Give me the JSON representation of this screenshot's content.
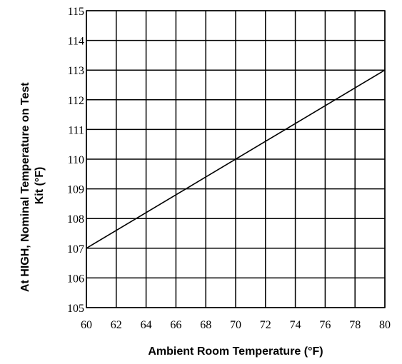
{
  "chart_data": {
    "type": "line",
    "title": "",
    "xlabel": "Ambient Room Temperature (°F)",
    "ylabel_lines": [
      "At HIGH, Nominal Temperature on Test",
      "Kit (°F)"
    ],
    "xlim": [
      60,
      80
    ],
    "ylim": [
      105,
      115
    ],
    "x_ticks": [
      "60",
      "62",
      "64",
      "66",
      "68",
      "70",
      "72",
      "74",
      "76",
      "78",
      "80"
    ],
    "y_ticks": [
      "105",
      "106",
      "107",
      "108",
      "109",
      "110",
      "111",
      "112",
      "113",
      "114",
      "115"
    ],
    "grid": true,
    "legend": "none",
    "series": [
      {
        "x": [
          60,
          80
        ],
        "y": [
          107,
          113
        ]
      }
    ],
    "colors": {
      "line": "#000000",
      "grid": "#000000",
      "background": "#ffffff"
    }
  }
}
